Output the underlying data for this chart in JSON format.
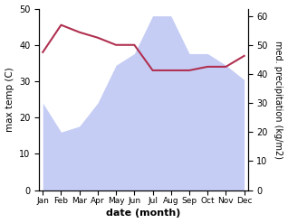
{
  "months": [
    "Jan",
    "Feb",
    "Mar",
    "Apr",
    "May",
    "Jun",
    "Jul",
    "Aug",
    "Sep",
    "Oct",
    "Nov",
    "Dec"
  ],
  "temperature": [
    38,
    45.5,
    43.5,
    42,
    40,
    40,
    33,
    33,
    33,
    34,
    34,
    37
  ],
  "precipitation": [
    30,
    20,
    22,
    30,
    43,
    47,
    60,
    60,
    47,
    47,
    43,
    38
  ],
  "temp_color": "#b03050",
  "precip_fill_color": "#c5cdf5",
  "temp_ylim": [
    0,
    50
  ],
  "precip_ylim": [
    0,
    62.5
  ],
  "xlabel": "date (month)",
  "ylabel_left": "max temp (C)",
  "ylabel_right": "med. precipitation (kg/m2)",
  "bg_color": "#ffffff"
}
